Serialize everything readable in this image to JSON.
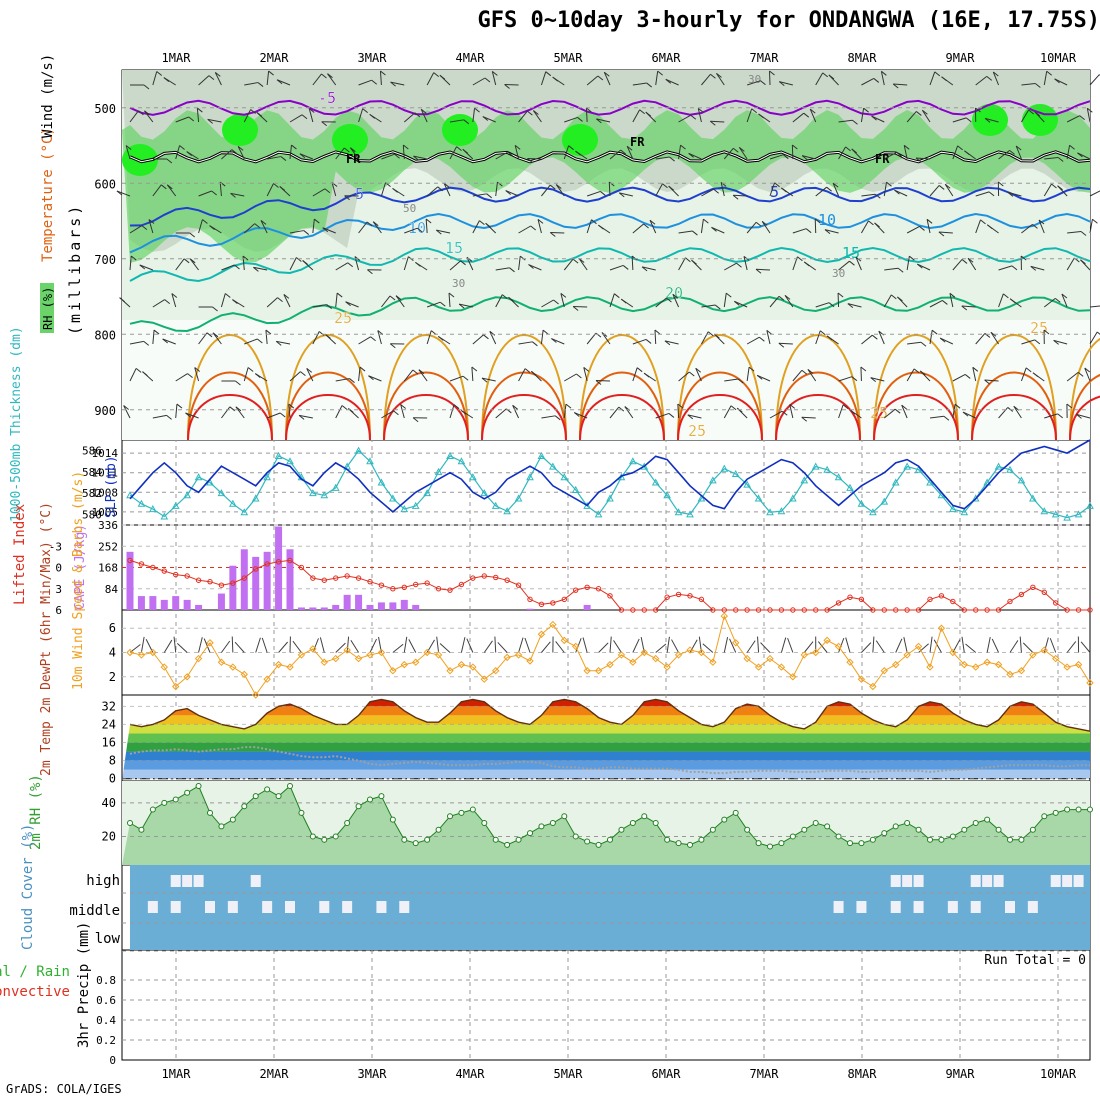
{
  "title": "GFS 0~10day 3-hourly for ONDANGWA (16E, 17.75S)",
  "credit": "GrADS: COLA/IGES",
  "colors": {
    "rh_light": "#e6f3e6",
    "rh_mid": "#c8e0c8",
    "rh_gray": "#b8c8b8",
    "rh_green": "#6ad36a",
    "rh_bright": "#22ee22",
    "temp_purple": "#8a00c8",
    "temp_blue": "#1e3fd0",
    "temp_sky": "#1e90e0",
    "temp_teal": "#10b8b0",
    "temp_green": "#10b070",
    "temp_gold": "#e0a020",
    "temp_orange": "#e06010",
    "temp_red": "#e02020",
    "slp": "#1030c0",
    "thickness": "#30b8c0",
    "lifted": "#e03020",
    "cape": "#c070f0",
    "wind_speed": "#f0a020",
    "barb": "#404040",
    "cloud": "#6aaed6",
    "cloud_clear": "#f0f0f8",
    "rh2m_fill": "#a8d8a8",
    "rh2m_line": "#208020",
    "dewpt_line": "#a0a0a0"
  },
  "chart_data": {
    "type": "meteogram",
    "days": [
      "1MAR",
      "2MAR",
      "3MAR",
      "4MAR",
      "5MAR",
      "6MAR",
      "7MAR",
      "8MAR",
      "9MAR",
      "10MAR"
    ],
    "panels": [
      {
        "id": "upper_air",
        "ylabel": "(millibars)",
        "legend_labels": [
          "Wind (m/s)",
          "Temperature (°C)",
          "RH (%)"
        ],
        "y_ticks": [
          "500",
          "600",
          "700",
          "800",
          "900"
        ],
        "ylim": [
          940,
          450
        ],
        "freezing_label": "FR",
        "temp_contours": [
          {
            "label": "-5",
            "pressure": 500
          },
          {
            "label": "5",
            "pressure": 615
          },
          {
            "label": "10",
            "pressure": 650
          },
          {
            "label": "15",
            "pressure": 695
          },
          {
            "label": "20",
            "pressure": 760
          },
          {
            "label": "25",
            "pressure": 810
          }
        ],
        "rh_labels": [
          "50",
          "30",
          "30",
          "30"
        ]
      },
      {
        "id": "slp_thickness",
        "ylabel_left": "1000-500mb Thickness (dm)",
        "ylabel_right": "SLP (mb)",
        "thickness_ticks": [
          "586",
          "584",
          "582",
          "580"
        ],
        "slp_ticks": [
          "1014",
          "1011",
          "1008",
          "1005"
        ],
        "thickness_ylim": [
          579,
          587
        ],
        "slp_ylim": [
          1003,
          1016
        ],
        "thickness": [
          581.8,
          581,
          580.5,
          579.8,
          580.8,
          581.8,
          583.5,
          583,
          582,
          581,
          580.2,
          581.5,
          583.5,
          585.5,
          585,
          583.5,
          582,
          581.8,
          582.5,
          584.5,
          586,
          585,
          583,
          581.5,
          580.5,
          580.8,
          582,
          584,
          585.5,
          585,
          583.5,
          582,
          580.8,
          580.3,
          581.5,
          583.5,
          585.5,
          584.5,
          583.5,
          582.3,
          580.8,
          580,
          581.5,
          583.5,
          585,
          584.5,
          583,
          581.8,
          580.2,
          580,
          581.5,
          583.2,
          584.3,
          583.8,
          582.8,
          581.5,
          580.2,
          580.3,
          581.5,
          583.2,
          584.5,
          584.2,
          583.5,
          582.5,
          581,
          580.2,
          581.2,
          583,
          584.5,
          584.2,
          583,
          581.8,
          580.5,
          580.2,
          581.5,
          583,
          584.5,
          584.2,
          583.2,
          581.5,
          580.3,
          580,
          579.7,
          580,
          580.8
        ],
        "slp": [
          1007,
          1009,
          1011,
          1012.5,
          1011,
          1009,
          1008,
          1010,
          1012,
          1011,
          1010,
          1009,
          1011,
          1012.5,
          1012,
          1010,
          1009,
          1011,
          1012.5,
          1011.5,
          1010,
          1008,
          1006.5,
          1005,
          1006.5,
          1008,
          1009,
          1010,
          1011,
          1010,
          1008,
          1007,
          1008,
          1010,
          1011,
          1012,
          1011,
          1009,
          1008,
          1007,
          1006,
          1008,
          1009,
          1010.5,
          1011,
          1012,
          1013.5,
          1013,
          1011,
          1009,
          1007.5,
          1006,
          1005.5,
          1008,
          1010,
          1011,
          1012,
          1013,
          1012.5,
          1011,
          1009,
          1007.5,
          1006,
          1007.5,
          1009,
          1010,
          1011,
          1012.5,
          1013,
          1012,
          1010,
          1008,
          1006,
          1005.5,
          1007,
          1009,
          1011,
          1012.5,
          1014,
          1014.5,
          1015,
          1014.5,
          1014,
          1015,
          1016
        ]
      },
      {
        "id": "cape_li",
        "ylabel_left": "Lifted Index",
        "ylabel_right": "CAPE (J/kg)",
        "li_ticks": [
          "-3",
          "0",
          "3",
          "6"
        ],
        "cape_ticks": [
          "336",
          "252",
          "168",
          "84"
        ],
        "li_ylim": [
          -6,
          6
        ],
        "cape_ylim": [
          0,
          336
        ],
        "cape": [
          230,
          55,
          55,
          40,
          55,
          40,
          20,
          0,
          65,
          175,
          240,
          210,
          230,
          330,
          240,
          10,
          10,
          10,
          20,
          60,
          60,
          20,
          30,
          30,
          40,
          20,
          0,
          0,
          0,
          0,
          0,
          0,
          0,
          0,
          0,
          5,
          0,
          0,
          0,
          0,
          20,
          0,
          0,
          0,
          0,
          0,
          0,
          0,
          0,
          0,
          0,
          0,
          0,
          0,
          0,
          0,
          0,
          0,
          0,
          0,
          0,
          0,
          0,
          0,
          0,
          0,
          0,
          0,
          0,
          0,
          0,
          0,
          0,
          0,
          0,
          0,
          0,
          0,
          0,
          0,
          0,
          0,
          0,
          0,
          0
        ],
        "lifted_index": [
          -1,
          -0.5,
          0,
          0.5,
          1,
          1.2,
          1.8,
          2,
          2.5,
          2.2,
          1.5,
          0.2,
          -0.5,
          -0.8,
          -1,
          0,
          1.5,
          1.8,
          1.5,
          1.2,
          1.5,
          2,
          2.5,
          3,
          2.8,
          2.4,
          2.2,
          3,
          3.2,
          2.4,
          1.5,
          1.2,
          1.4,
          1.8,
          2.5,
          4.5,
          5.2,
          5,
          4.5,
          3.2,
          2.8,
          3,
          4,
          6,
          6,
          6,
          6,
          4.2,
          3.8,
          4,
          4.5,
          6,
          6,
          6,
          6,
          6,
          6,
          6,
          6,
          6,
          6,
          6,
          5,
          4.2,
          4.5,
          6,
          6,
          6,
          6,
          6,
          4.5,
          4,
          4.8,
          6,
          6,
          6,
          6,
          4.8,
          3.8,
          2.8,
          3.5,
          5,
          6,
          6,
          6
        ]
      },
      {
        "id": "wind10m",
        "ylabel": "10m Wind Speed & Barbs (m/s)",
        "y_ticks": [
          "6",
          "4",
          "2"
        ],
        "ylim": [
          0.5,
          7.5
        ],
        "speed": [
          4,
          3.8,
          4,
          2.8,
          1.2,
          2,
          3.5,
          4.8,
          3.2,
          2.8,
          2.2,
          0.5,
          1.8,
          3,
          2.8,
          3.8,
          4.3,
          3.2,
          3.5,
          4.2,
          3.5,
          3.8,
          4,
          2.5,
          3,
          3.2,
          4,
          3.8,
          2.5,
          3,
          2.8,
          1.8,
          2.5,
          3.6,
          3.8,
          3.3,
          5.5,
          6.3,
          5,
          4.5,
          2.5,
          2.5,
          3,
          3.8,
          3.2,
          4,
          3.5,
          2.8,
          3.8,
          4.2,
          4,
          3.2,
          7,
          4.8,
          3.5,
          2.8,
          3.5,
          2.8,
          2,
          3.8,
          4,
          5,
          4.5,
          3.2,
          1.8,
          1.2,
          2.5,
          3,
          3.8,
          4.5,
          2.8,
          6,
          4,
          3,
          2.8,
          3.2,
          3,
          2.2,
          2.5,
          3.8,
          4.2,
          3.5,
          2.8,
          3,
          1.5
        ]
      },
      {
        "id": "temp2m",
        "ylabel": "2m Temp 2m DewPt (6hr Min/Max) (°C)",
        "y_ticks": [
          "32",
          "24",
          "16",
          "8",
          "0"
        ],
        "ylim": [
          -1,
          37
        ],
        "temp": [
          24,
          23,
          24,
          26,
          30,
          31,
          28,
          26,
          24,
          23,
          22,
          24,
          29,
          32,
          33,
          31,
          28,
          26,
          24,
          24,
          28,
          34,
          35,
          34,
          30,
          27,
          25,
          25,
          29,
          34,
          35,
          34,
          30,
          27,
          25,
          24,
          28,
          34,
          35,
          34,
          31,
          27,
          25,
          24,
          28,
          34,
          35,
          34,
          30,
          27,
          24,
          23,
          25,
          31,
          33,
          32,
          28,
          25,
          23,
          22,
          25,
          32,
          34,
          33,
          29,
          26,
          24,
          23,
          26,
          32,
          34,
          33,
          29,
          26,
          24,
          23,
          26,
          32,
          34,
          33,
          29,
          25,
          23,
          22,
          21
        ],
        "dewpt": [
          11,
          12,
          12.5,
          12.5,
          13,
          12.5,
          12,
          12.5,
          13,
          13,
          14,
          14,
          13,
          12,
          11,
          10,
          9.5,
          9.5,
          10,
          9,
          8,
          6.5,
          6,
          6.5,
          7,
          7.5,
          7,
          6.5,
          6,
          6,
          6,
          6.5,
          6.5,
          7,
          7.5,
          7.5,
          7,
          5.5,
          5,
          5,
          4.5,
          4.5,
          5,
          5,
          4.5,
          4.5,
          4.5,
          4.5,
          4,
          3,
          3,
          2.5,
          2.5,
          3,
          3,
          3.5,
          3.5,
          3.5,
          3,
          3,
          3,
          3.5,
          3.5,
          3.5,
          3,
          3,
          3.5,
          3.5,
          3.5,
          3.5,
          3,
          3.5,
          4,
          4,
          4.5,
          5,
          5.5,
          6,
          6,
          6,
          6,
          5.5,
          5.5,
          6,
          6
        ]
      },
      {
        "id": "rh2m",
        "ylabel": "2m RH (%)",
        "y_ticks": [
          "40",
          "20"
        ],
        "ylim": [
          3,
          53
        ],
        "rh": [
          28,
          24,
          36,
          40,
          42,
          46,
          50,
          34,
          26,
          30,
          38,
          44,
          48,
          44,
          50,
          34,
          20,
          18,
          20,
          28,
          38,
          42,
          44,
          30,
          18,
          16,
          18,
          24,
          32,
          34,
          36,
          28,
          18,
          15,
          18,
          22,
          26,
          28,
          32,
          20,
          17,
          15,
          18,
          24,
          28,
          32,
          28,
          18,
          16,
          15,
          18,
          24,
          30,
          34,
          24,
          16,
          14,
          16,
          20,
          24,
          28,
          26,
          20,
          16,
          16,
          18,
          22,
          26,
          28,
          24,
          18,
          18,
          20,
          24,
          28,
          30,
          24,
          18,
          18,
          24,
          32,
          34,
          36,
          36,
          36
        ]
      },
      {
        "id": "cloud",
        "ylabel": "Cloud Cover (%)",
        "levels": [
          "high",
          "middle",
          "low"
        ]
      },
      {
        "id": "precip",
        "ylabel": "3hr Precip (mm)",
        "legend_labels": [
          "Total / Rain",
          "Convective"
        ],
        "y_ticks": [
          "0.8",
          "0.6",
          "0.4",
          "0.2",
          "0"
        ],
        "ylim": [
          0,
          1
        ],
        "run_total_label": "Run Total = 0",
        "values": []
      }
    ]
  }
}
